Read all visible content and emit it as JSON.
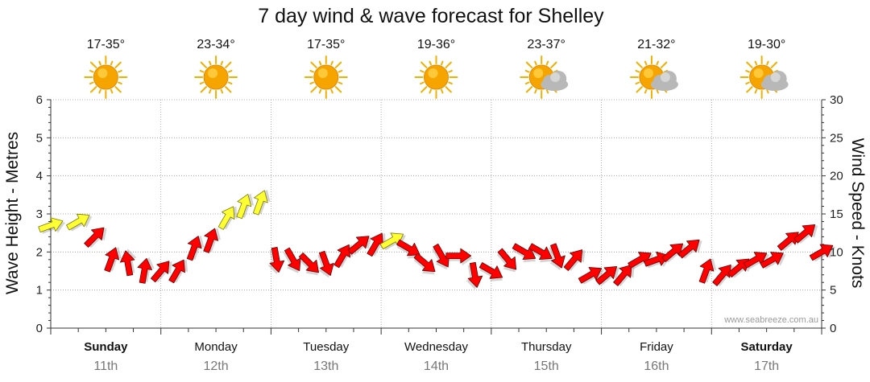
{
  "chart_data": {
    "type": "line",
    "title": "7 day wind & wave forecast for Shelley",
    "ylabel_left": "Wave Height - Metres",
    "ylabel_right": "Wind Speed - Knots",
    "ylim_left": [
      0,
      6
    ],
    "ylim_right": [
      0,
      30
    ],
    "yticks_left": [
      "0",
      "1",
      "2",
      "3",
      "4",
      "5",
      "6"
    ],
    "yticks_right": [
      "0",
      "5",
      "10",
      "15",
      "20",
      "25",
      "30"
    ],
    "grid": true,
    "days": [
      {
        "day": "Sunday",
        "date": "11th",
        "temp": "17-35°",
        "weather": "sunny-icon",
        "bold": true
      },
      {
        "day": "Monday",
        "date": "12th",
        "temp": "23-34°",
        "weather": "sunny-icon",
        "bold": false
      },
      {
        "day": "Tuesday",
        "date": "13th",
        "temp": "17-35°",
        "weather": "sunny-icon",
        "bold": false
      },
      {
        "day": "Wednesday",
        "date": "14th",
        "temp": "19-36°",
        "weather": "sunny-icon",
        "bold": false
      },
      {
        "day": "Thursday",
        "date": "15th",
        "temp": "23-37°",
        "weather": "partly-cloudy-icon",
        "bold": false
      },
      {
        "day": "Friday",
        "date": "16th",
        "temp": "21-32°",
        "weather": "partly-cloudy-icon",
        "bold": false
      },
      {
        "day": "Saturday",
        "date": "17th",
        "temp": "19-30°",
        "weather": "partly-cloudy-icon",
        "bold": true
      }
    ],
    "series": [
      {
        "kind": "wind-arrows",
        "unit": "knots",
        "x_day": [
          0.0,
          0.25,
          0.4,
          0.55,
          0.7,
          0.85,
          1.0,
          1.15,
          1.3,
          1.45,
          1.6,
          1.75,
          1.9,
          2.05,
          2.2,
          2.35,
          2.5,
          2.65,
          2.8,
          2.95,
          3.1,
          3.25,
          3.4,
          3.55,
          3.7,
          3.85,
          4.0,
          4.15,
          4.3,
          4.45,
          4.6,
          4.75,
          4.9,
          5.05,
          5.2,
          5.35,
          5.5,
          5.65,
          5.8,
          5.95,
          6.1,
          6.25,
          6.4,
          6.55,
          6.7,
          6.85,
          7.0
        ],
        "values": [
          13.5,
          14,
          12,
          9,
          8.5,
          7.5,
          7.5,
          7.5,
          10.5,
          11.5,
          14.5,
          16,
          16.5,
          9,
          9,
          8.5,
          8.5,
          9.5,
          11,
          11,
          11.5,
          10.5,
          8.5,
          9.5,
          9.5,
          7,
          7.5,
          9,
          10,
          10,
          9.5,
          9,
          7,
          7,
          7,
          9,
          9,
          10,
          10.5,
          7.5,
          7,
          8,
          9,
          9,
          11.5,
          12.5,
          10
        ],
        "direction_deg": [
          250,
          240,
          225,
          200,
          170,
          190,
          220,
          210,
          200,
          200,
          210,
          200,
          200,
          350,
          330,
          315,
          340,
          210,
          230,
          210,
          240,
          300,
          310,
          330,
          270,
          350,
          300,
          320,
          300,
          300,
          340,
          220,
          240,
          230,
          220,
          240,
          250,
          230,
          230,
          200,
          220,
          230,
          240,
          240,
          230,
          230,
          240
        ],
        "colors": [
          "#ffff33",
          "#ffff33",
          "#ff0000",
          "#ff0000",
          "#ff0000",
          "#ff0000",
          "#ff0000",
          "#ff0000",
          "#ff0000",
          "#ff0000",
          "#ffff33",
          "#ffff33",
          "#ffff33",
          "#ff0000",
          "#ff0000",
          "#ff0000",
          "#ff0000",
          "#ff0000",
          "#ff0000",
          "#ff0000",
          "#ffff33",
          "#ff0000",
          "#ff0000",
          "#ff0000",
          "#ff0000",
          "#ff0000",
          "#ff0000",
          "#ff0000",
          "#ff0000",
          "#ff0000",
          "#ff0000",
          "#ff0000",
          "#ff0000",
          "#ff0000",
          "#ff0000",
          "#ff0000",
          "#ff0000",
          "#ff0000",
          "#ff0000",
          "#ff0000",
          "#ff0000",
          "#ff0000",
          "#ff0000",
          "#ff0000",
          "#ff0000",
          "#ff0000",
          "#ff0000"
        ]
      }
    ],
    "watermark": "www.seabreeze.com.au"
  },
  "colors": {
    "sun": "#f6a500",
    "sun_ray": "#f0b000",
    "cloud": "#b8b8b8",
    "grid": "#999999"
  }
}
